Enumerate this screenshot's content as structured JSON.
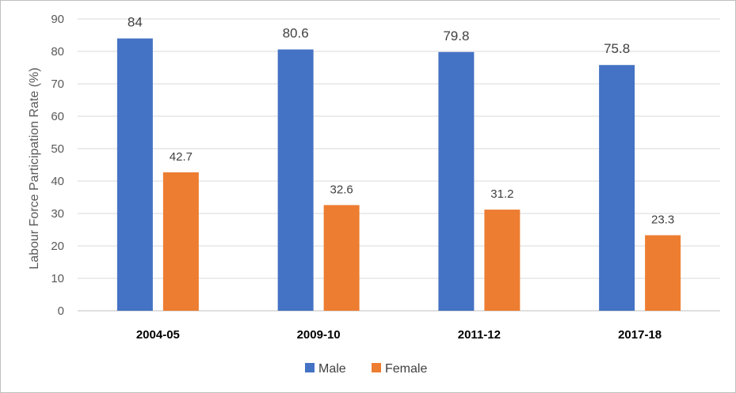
{
  "chart_data": {
    "type": "bar",
    "title": "",
    "xlabel": "",
    "ylabel": "Labour Force Participation Rate (%)",
    "categories": [
      "2004-05",
      "2009-10",
      "2011-12",
      "2017-18"
    ],
    "series": [
      {
        "name": "Male",
        "values": [
          84,
          80.6,
          79.8,
          75.8
        ],
        "color": "#4472C4"
      },
      {
        "name": "Female",
        "values": [
          42.7,
          32.6,
          31.2,
          23.3
        ],
        "color": "#ED7D31"
      }
    ],
    "ylim": [
      0,
      90
    ],
    "yticks": [
      0,
      10,
      20,
      30,
      40,
      50,
      60,
      70,
      80,
      90
    ],
    "grid": true,
    "legend_position": "bottom",
    "data_labels": true
  }
}
